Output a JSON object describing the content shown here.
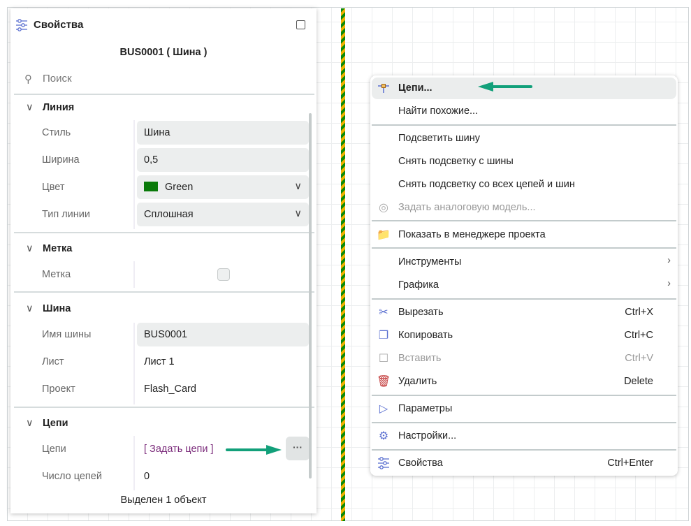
{
  "panel": {
    "title": "Свойства",
    "object": "BUS0001 ( Шина )",
    "search_placeholder": "Поиск",
    "sections": {
      "line": {
        "title": "Линия",
        "style_label": "Стиль",
        "style_value": "Шина",
        "width_label": "Ширина",
        "width_value": "0,5",
        "color_label": "Цвет",
        "color_value": "Green",
        "color_hex": "#0a7a0a",
        "linetype_label": "Тип линии",
        "linetype_value": "Сплошная"
      },
      "mark": {
        "title": "Метка",
        "mark_label": "Метка",
        "mark_checked": false
      },
      "bus": {
        "title": "Шина",
        "name_label": "Имя шины",
        "name_value": "BUS0001",
        "sheet_label": "Лист",
        "sheet_value": "Лист 1",
        "project_label": "Проект",
        "project_value": "Flash_Card"
      },
      "nets": {
        "title": "Цепи",
        "nets_label": "Цепи",
        "nets_value": "[ Задать цепи ]",
        "count_label": "Число цепей",
        "count_value": "0",
        "more": "···"
      }
    },
    "footer": "Выделен 1 объект"
  },
  "menu": {
    "items": [
      {
        "label": "Цепи...",
        "icon": "net-icon"
      },
      {
        "label": "Найти похожие..."
      },
      {
        "label": "Подсветить шину"
      },
      {
        "label": "Снять подсветку с шины"
      },
      {
        "label": "Снять подсветку со всех цепей и шин"
      },
      {
        "label": "Задать аналоговую модель...",
        "icon": "spiral-icon",
        "disabled": true
      },
      {
        "label": "Показать в менеджере проекта",
        "icon": "project-folder-icon"
      },
      {
        "label": "Инструменты",
        "submenu": true
      },
      {
        "label": "Графика",
        "submenu": true
      },
      {
        "label": "Вырезать",
        "shortcut": "Ctrl+X",
        "icon": "scissors-icon"
      },
      {
        "label": "Копировать",
        "shortcut": "Ctrl+C",
        "icon": "copy-icon"
      },
      {
        "label": "Вставить",
        "shortcut": "Ctrl+V",
        "icon": "paste-icon",
        "disabled": true
      },
      {
        "label": "Удалить",
        "shortcut": "Delete",
        "icon": "trash-icon"
      },
      {
        "label": "Параметры",
        "icon": "parameters-icon"
      },
      {
        "label": "Настройки...",
        "icon": "gear-icon"
      },
      {
        "label": "Свойства",
        "shortcut": "Ctrl+Enter",
        "icon": "sliders-icon"
      }
    ]
  },
  "colors": {
    "accent_arrow": "#12a07a",
    "bus_green": "#0a8a0a",
    "bus_orange": "#f2b100"
  }
}
